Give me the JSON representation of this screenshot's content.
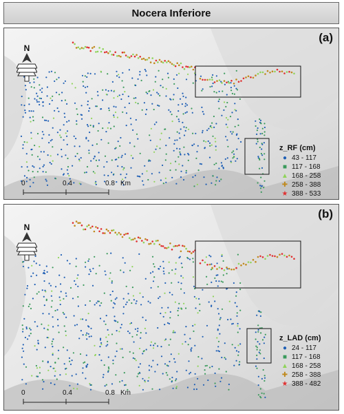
{
  "title": "Nocera Inferiore",
  "panels": [
    {
      "label": "(a)",
      "legend_title": "z_RF (cm)",
      "classes": [
        {
          "label": "43 - 117",
          "color": "#1f5fb5",
          "symbol": "circle"
        },
        {
          "label": "117 - 168",
          "color": "#3a9a5b",
          "symbol": "square"
        },
        {
          "label": "168 - 258",
          "color": "#8fd45a",
          "symbol": "triangle"
        },
        {
          "label": "258 - 388",
          "color": "#c08a1e",
          "symbol": "plus"
        },
        {
          "label": "388 - 533",
          "color": "#e03030",
          "symbol": "star"
        }
      ]
    },
    {
      "label": "(b)",
      "legend_title": "z_LAD (cm)",
      "classes": [
        {
          "label": "24 - 117",
          "color": "#1f5fb5",
          "symbol": "circle"
        },
        {
          "label": "117 - 168",
          "color": "#3a9a5b",
          "symbol": "square"
        },
        {
          "label": "168 - 258",
          "color": "#8fd45a",
          "symbol": "triangle"
        },
        {
          "label": "258 - 388",
          "color": "#c08a1e",
          "symbol": "plus"
        },
        {
          "label": "388 - 482",
          "color": "#e03030",
          "symbol": "star"
        }
      ]
    }
  ],
  "scale": {
    "ticks": [
      "0",
      "0.4",
      "0.8"
    ],
    "unit": "Km"
  },
  "north_letter": "N"
}
